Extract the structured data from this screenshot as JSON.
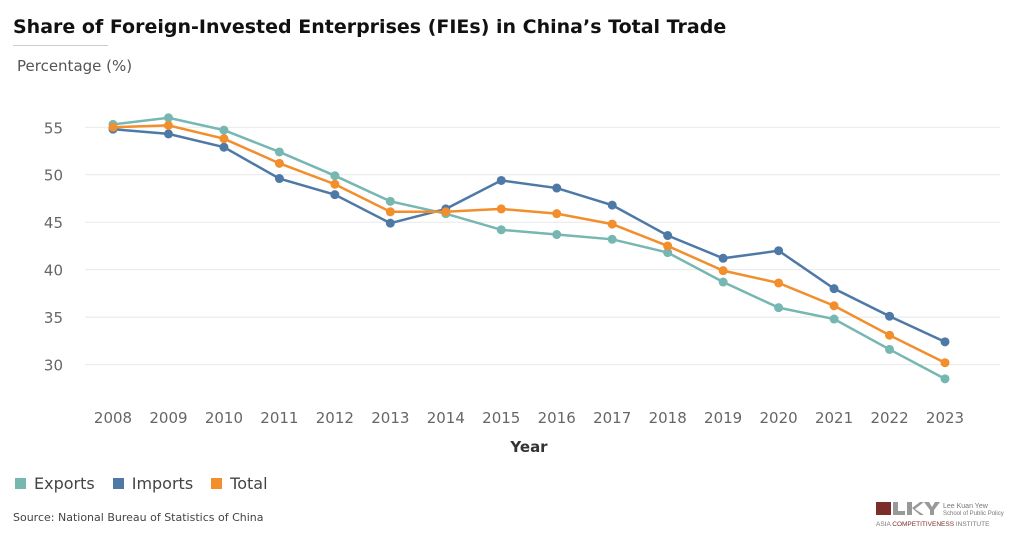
{
  "chart_data": {
    "type": "line",
    "title": "Share of Foreign-Invested Enterprises (FIEs) in China’s Total Trade",
    "ylabel": "Percentage (%)",
    "xlabel": "Year",
    "x": [
      2008,
      2009,
      2010,
      2011,
      2012,
      2013,
      2014,
      2015,
      2016,
      2017,
      2018,
      2019,
      2020,
      2021,
      2022,
      2023
    ],
    "yticks": [
      30,
      35,
      40,
      45,
      50,
      55
    ],
    "ylim": [
      26.8,
      58.4
    ],
    "grid": true,
    "legend": "bottom-left",
    "series": [
      {
        "name": "Exports",
        "color": "#76b7b2",
        "values": [
          55.3,
          56.0,
          54.7,
          52.4,
          49.9,
          47.2,
          45.9,
          44.2,
          43.7,
          43.2,
          41.8,
          38.7,
          36.0,
          34.8,
          31.6,
          28.5
        ]
      },
      {
        "name": "Imports",
        "color": "#4e79a7",
        "values": [
          54.8,
          54.3,
          52.9,
          49.6,
          47.9,
          44.9,
          46.4,
          49.4,
          48.6,
          46.8,
          43.6,
          41.2,
          42.0,
          38.0,
          35.1,
          32.4
        ]
      },
      {
        "name": "Total",
        "color": "#f28e2b",
        "values": [
          55.0,
          55.2,
          53.8,
          51.2,
          49.0,
          46.1,
          46.1,
          46.4,
          45.9,
          44.8,
          42.5,
          39.9,
          38.6,
          36.2,
          33.1,
          30.2
        ]
      }
    ]
  },
  "source": "Source: National Bureau of Statistics of China",
  "logo_text": "LKY Lee Kuan Yew School of Public Policy Asia Competitiveness Institute"
}
